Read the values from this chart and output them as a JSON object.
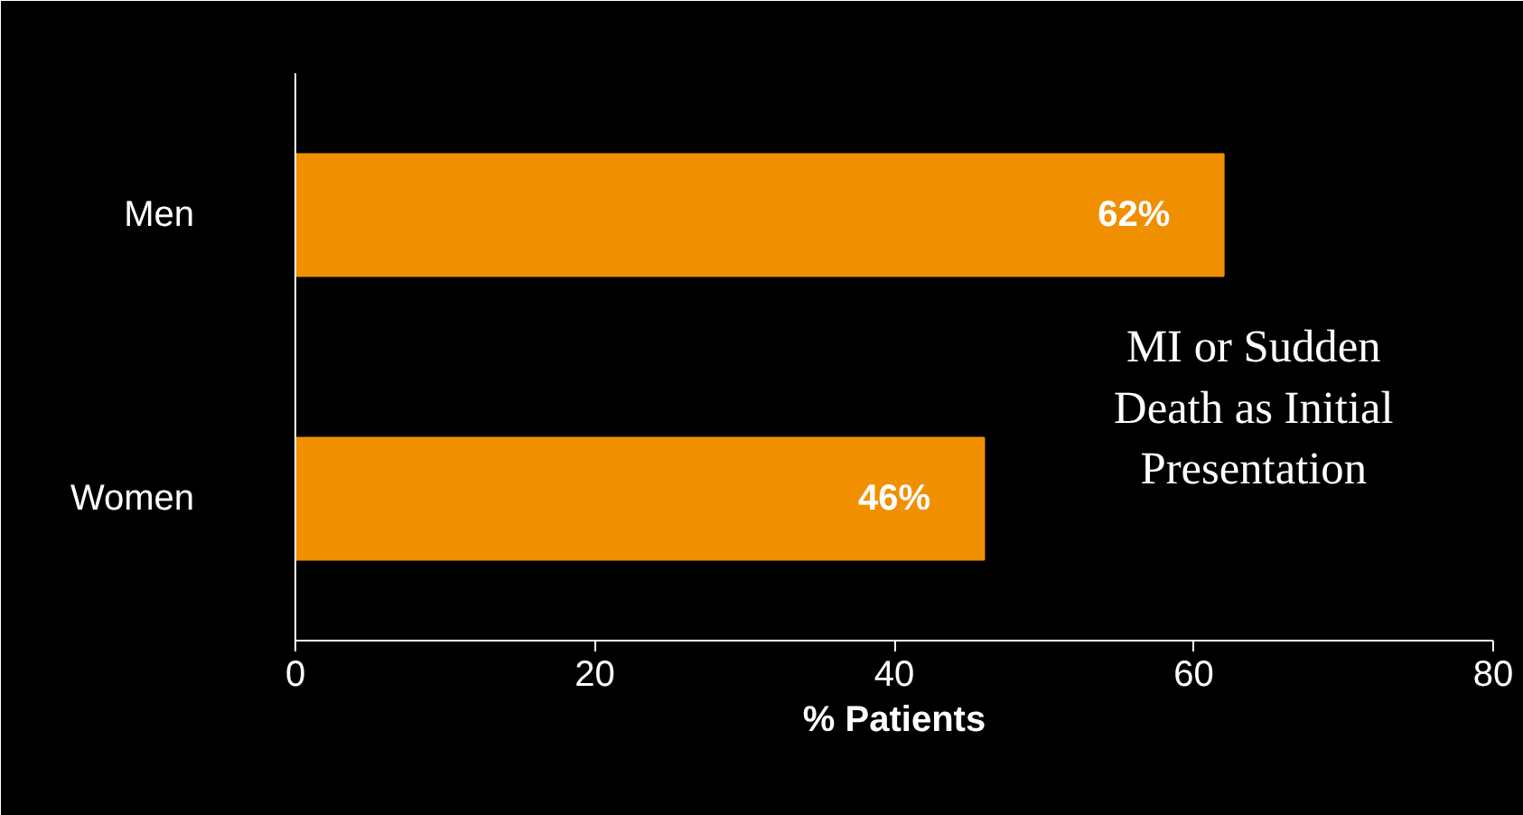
{
  "chart_data": {
    "type": "bar",
    "orientation": "horizontal",
    "categories": [
      "Men",
      "Women"
    ],
    "values": [
      62,
      46
    ],
    "color": "#f09000",
    "xlim": [
      0,
      80
    ],
    "xticks": [
      0,
      20,
      40,
      60,
      80
    ],
    "xlabel": "% Patients",
    "value_labels": [
      "62%",
      "46%"
    ],
    "grid": false,
    "annotations": [
      "MI or Sudden\nDeath as Initial\nPresentation"
    ]
  }
}
